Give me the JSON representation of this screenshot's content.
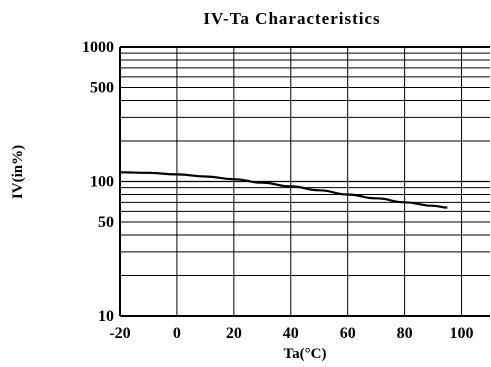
{
  "chart_data": {
    "type": "line",
    "title": "IV-Ta  Characteristics",
    "xlabel": "Ta(°C)",
    "ylabel": "IV(in%)",
    "xlim": [
      -20,
      110
    ],
    "ylim": [
      10,
      1000
    ],
    "yscale": "log",
    "grid": true,
    "x_ticks": [
      {
        "value": -20,
        "label": "-20"
      },
      {
        "value": 0,
        "label": "0"
      },
      {
        "value": 20,
        "label": "20"
      },
      {
        "value": 40,
        "label": "40"
      },
      {
        "value": 60,
        "label": "60"
      },
      {
        "value": 80,
        "label": "80"
      },
      {
        "value": 100,
        "label": "100"
      }
    ],
    "y_ticks": [
      {
        "value": 10,
        "label": "10"
      },
      {
        "value": 50,
        "label": "50"
      },
      {
        "value": 100,
        "label": "100"
      },
      {
        "value": 500,
        "label": "500"
      },
      {
        "value": 1000,
        "label": "1000"
      }
    ],
    "series": [
      {
        "color": "#000000",
        "x": [
          -20,
          -10,
          0,
          10,
          20,
          30,
          40,
          50,
          60,
          70,
          80,
          90,
          95
        ],
        "y": [
          117,
          116,
          113,
          109,
          104,
          98,
          92,
          86,
          80,
          75,
          70,
          66,
          64
        ]
      }
    ]
  }
}
